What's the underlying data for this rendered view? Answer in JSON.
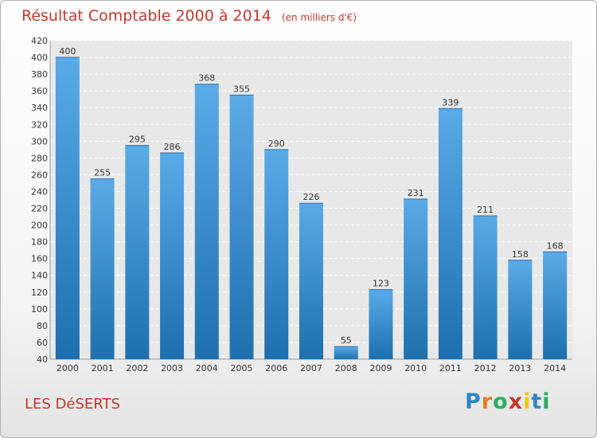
{
  "chart_data": {
    "type": "bar",
    "title": "Résultat Comptable 2000 à 2014",
    "subtitle": "(en milliers d'€)",
    "xlabel": "",
    "ylabel": "",
    "categories": [
      "2000",
      "2001",
      "2002",
      "2003",
      "2004",
      "2005",
      "2006",
      "2007",
      "2008",
      "2009",
      "2010",
      "2011",
      "2012",
      "2013",
      "2014"
    ],
    "values": [
      400,
      255,
      295,
      286,
      368,
      355,
      290,
      226,
      55,
      123,
      231,
      339,
      211,
      158,
      168
    ],
    "ylim": [
      40,
      420
    ],
    "yticks": [
      40,
      60,
      80,
      100,
      120,
      140,
      160,
      180,
      200,
      220,
      240,
      260,
      280,
      300,
      320,
      340,
      360,
      380,
      400,
      420
    ],
    "grid": true,
    "bar_color_top": "#5aaae8",
    "bar_color_bottom": "#1e6fae"
  },
  "footer": {
    "commune": "LES DéSERTS",
    "logo_letters": [
      "P",
      "r",
      "o",
      "x",
      "i",
      "t",
      "i"
    ],
    "logo_colors": [
      "#2e86c1",
      "#e67e22",
      "#27ae60",
      "#c0392b",
      "#f1c40f",
      "#2e86c1",
      "#27ae60"
    ]
  }
}
